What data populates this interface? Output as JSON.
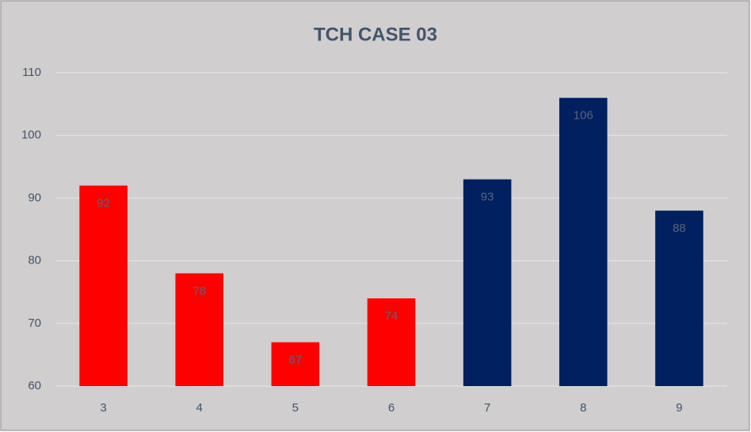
{
  "chart_data": {
    "type": "bar",
    "title": "TCH CASE 03",
    "categories": [
      "3",
      "4",
      "5",
      "6",
      "7",
      "8",
      "9"
    ],
    "values": [
      92,
      78,
      67,
      74,
      93,
      106,
      88
    ],
    "colors": [
      "#ff0000",
      "#ff0000",
      "#ff0000",
      "#ff0000",
      "#002060",
      "#002060",
      "#002060"
    ],
    "ylim": [
      60,
      110
    ],
    "yticks": [
      60,
      70,
      80,
      90,
      100,
      110
    ],
    "grid": true
  }
}
